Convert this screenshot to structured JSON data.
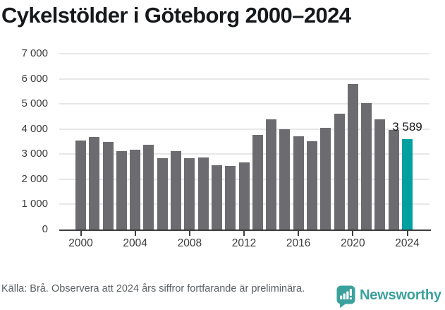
{
  "title": "Cykelstölder i Göteborg 2000–2024",
  "chart_data": {
    "type": "bar",
    "title": "Cykelstölder i Göteborg 2000–2024",
    "x": [
      2000,
      2001,
      2002,
      2003,
      2004,
      2005,
      2006,
      2007,
      2008,
      2009,
      2010,
      2011,
      2012,
      2013,
      2014,
      2015,
      2016,
      2017,
      2018,
      2019,
      2020,
      2021,
      2022,
      2023,
      2024
    ],
    "values": [
      3540,
      3670,
      3500,
      3120,
      3190,
      3360,
      2830,
      3110,
      2840,
      2860,
      2550,
      2530,
      2660,
      3760,
      4400,
      3990,
      3720,
      3510,
      4050,
      4610,
      5780,
      5030,
      4380,
      3960,
      3589
    ],
    "highlight_year": 2024,
    "highlight_label": "3 589",
    "ylim": [
      0,
      7000
    ],
    "ytick_step": 1000,
    "ytick_labels": [
      "0",
      "1 000",
      "2 000",
      "3 000",
      "4 000",
      "5 000",
      "6 000",
      "7 000"
    ],
    "xtick_years": [
      2000,
      2004,
      2008,
      2012,
      2016,
      2020,
      2024
    ],
    "xtick_labels": [
      "2000",
      "2004",
      "2008",
      "2012",
      "2016",
      "2020",
      "2024"
    ],
    "grid": true,
    "legend_position": "none",
    "bar_color": "#6c6c70",
    "highlight_color": "#00a0a0"
  },
  "footer": {
    "source_note": "Källa: Brå. Observera att 2024 års siffror fortfarande är preliminära.",
    "brand": "Newsworthy",
    "brand_color": "#3ba19d",
    "brand_icon": "newsworthy-speech-bubble-bar-chart-icon"
  },
  "colors": {
    "background": "#ffffff",
    "bar": "#6c6c70",
    "accent": "#00a0a0",
    "brand": "#3ba19d",
    "gridline": "#e7e7e7",
    "axis": "#3d3d3d",
    "title_text": "#16191b",
    "muted_text": "#5b6064"
  }
}
